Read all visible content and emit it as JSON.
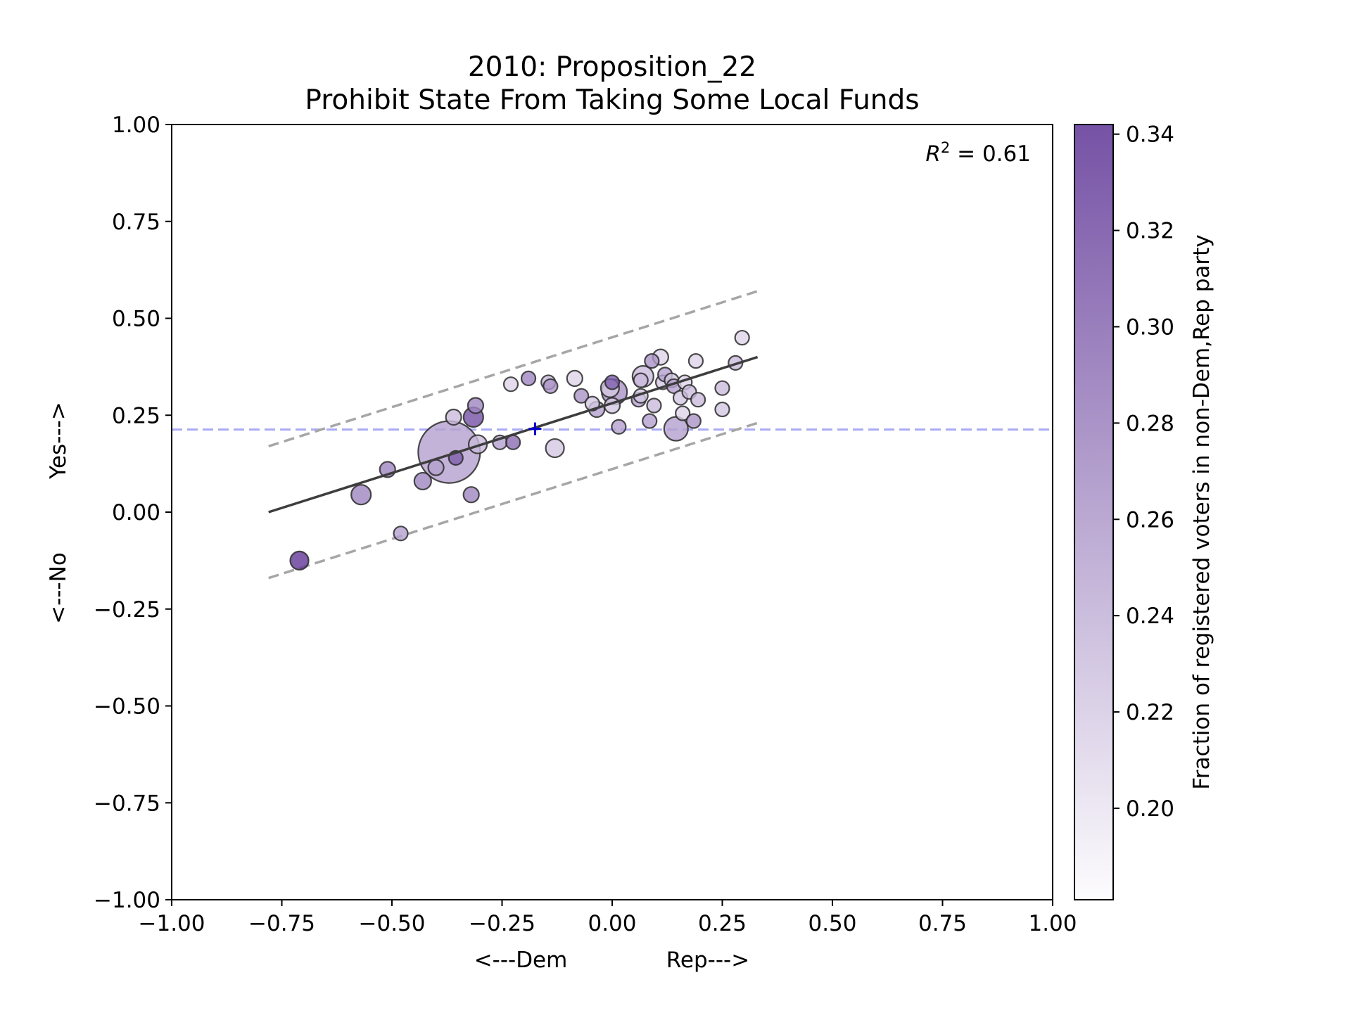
{
  "chart_data": {
    "type": "scatter",
    "title": "2010: Proposition_22",
    "subtitle": "Prohibit State From Taking Some Local Funds",
    "xlabel_left": "<---Dem",
    "xlabel_right": "Rep--->",
    "ylabel_bottom": "<---No",
    "ylabel_top": "Yes--->",
    "xlim": [
      -1.0,
      1.0
    ],
    "ylim": [
      -1.0,
      1.0
    ],
    "x_ticks": [
      "−1.00",
      "−0.75",
      "−0.50",
      "−0.25",
      "0.00",
      "0.25",
      "0.50",
      "0.75",
      "1.00"
    ],
    "y_ticks": [
      "−1.00",
      "−0.75",
      "−0.50",
      "−0.25",
      "0.00",
      "0.25",
      "0.50",
      "0.75",
      "1.00"
    ],
    "r2_label": "R",
    "r2_exp": "2",
    "r2_value": " = 0.61",
    "reference_y": 0.213,
    "mean_point": {
      "x": -0.175,
      "y": 0.215
    },
    "fit_line": {
      "x": [
        -0.78,
        0.33
      ],
      "y": [
        0.0,
        0.4
      ]
    },
    "band_upper": {
      "x": [
        -0.78,
        0.33
      ],
      "y": [
        0.17,
        0.57
      ]
    },
    "band_lower": {
      "x": [
        -0.78,
        0.33
      ],
      "y": [
        -0.17,
        0.23
      ]
    },
    "colorbar": {
      "label": "Fraction of registered voters in non-Dem,Rep party",
      "range": [
        0.181,
        0.342
      ],
      "ticks": [
        "0.20",
        "0.22",
        "0.24",
        "0.26",
        "0.28",
        "0.30",
        "0.32",
        "0.34"
      ],
      "tick_values": [
        0.2,
        0.22,
        0.24,
        0.26,
        0.28,
        0.3,
        0.32,
        0.34
      ],
      "color_low": "#fcfbfd",
      "color_high": "#54278f"
    },
    "points": [
      {
        "x": -0.71,
        "y": -0.125,
        "c": 0.33,
        "s": 13
      },
      {
        "x": -0.57,
        "y": 0.045,
        "c": 0.27,
        "s": 14
      },
      {
        "x": -0.51,
        "y": 0.11,
        "c": 0.27,
        "s": 11
      },
      {
        "x": -0.48,
        "y": -0.055,
        "c": 0.25,
        "s": 10
      },
      {
        "x": -0.43,
        "y": 0.08,
        "c": 0.27,
        "s": 12
      },
      {
        "x": -0.4,
        "y": 0.115,
        "c": 0.25,
        "s": 11
      },
      {
        "x": -0.37,
        "y": 0.155,
        "c": 0.25,
        "s": 44
      },
      {
        "x": -0.355,
        "y": 0.14,
        "c": 0.3,
        "s": 10
      },
      {
        "x": -0.36,
        "y": 0.245,
        "c": 0.23,
        "s": 11
      },
      {
        "x": -0.32,
        "y": 0.045,
        "c": 0.27,
        "s": 11
      },
      {
        "x": -0.315,
        "y": 0.245,
        "c": 0.31,
        "s": 14
      },
      {
        "x": -0.31,
        "y": 0.275,
        "c": 0.27,
        "s": 11
      },
      {
        "x": -0.305,
        "y": 0.175,
        "c": 0.23,
        "s": 13
      },
      {
        "x": -0.255,
        "y": 0.18,
        "c": 0.25,
        "s": 10
      },
      {
        "x": -0.23,
        "y": 0.33,
        "c": 0.21,
        "s": 10
      },
      {
        "x": -0.225,
        "y": 0.18,
        "c": 0.29,
        "s": 10
      },
      {
        "x": -0.19,
        "y": 0.345,
        "c": 0.27,
        "s": 10
      },
      {
        "x": -0.145,
        "y": 0.335,
        "c": 0.23,
        "s": 10
      },
      {
        "x": -0.14,
        "y": 0.325,
        "c": 0.26,
        "s": 10
      },
      {
        "x": -0.13,
        "y": 0.165,
        "c": 0.22,
        "s": 13
      },
      {
        "x": -0.085,
        "y": 0.345,
        "c": 0.21,
        "s": 11
      },
      {
        "x": -0.07,
        "y": 0.3,
        "c": 0.26,
        "s": 10
      },
      {
        "x": -0.045,
        "y": 0.28,
        "c": 0.22,
        "s": 10
      },
      {
        "x": -0.035,
        "y": 0.265,
        "c": 0.25,
        "s": 11
      },
      {
        "x": -0.005,
        "y": 0.32,
        "c": 0.22,
        "s": 13
      },
      {
        "x": 0.0,
        "y": 0.275,
        "c": 0.22,
        "s": 11
      },
      {
        "x": 0.0,
        "y": 0.335,
        "c": 0.3,
        "s": 10
      },
      {
        "x": 0.005,
        "y": 0.31,
        "c": 0.26,
        "s": 18
      },
      {
        "x": 0.015,
        "y": 0.22,
        "c": 0.25,
        "s": 10
      },
      {
        "x": 0.06,
        "y": 0.29,
        "c": 0.25,
        "s": 10
      },
      {
        "x": 0.065,
        "y": 0.3,
        "c": 0.22,
        "s": 10
      },
      {
        "x": 0.065,
        "y": 0.34,
        "c": 0.23,
        "s": 10
      },
      {
        "x": 0.07,
        "y": 0.35,
        "c": 0.23,
        "s": 15
      },
      {
        "x": 0.085,
        "y": 0.235,
        "c": 0.25,
        "s": 10
      },
      {
        "x": 0.09,
        "y": 0.39,
        "c": 0.26,
        "s": 10
      },
      {
        "x": 0.095,
        "y": 0.275,
        "c": 0.23,
        "s": 10
      },
      {
        "x": 0.11,
        "y": 0.4,
        "c": 0.21,
        "s": 11
      },
      {
        "x": 0.115,
        "y": 0.335,
        "c": 0.22,
        "s": 10
      },
      {
        "x": 0.12,
        "y": 0.355,
        "c": 0.25,
        "s": 10
      },
      {
        "x": 0.135,
        "y": 0.34,
        "c": 0.22,
        "s": 10
      },
      {
        "x": 0.14,
        "y": 0.325,
        "c": 0.25,
        "s": 10
      },
      {
        "x": 0.145,
        "y": 0.215,
        "c": 0.25,
        "s": 17
      },
      {
        "x": 0.155,
        "y": 0.295,
        "c": 0.22,
        "s": 10
      },
      {
        "x": 0.16,
        "y": 0.255,
        "c": 0.21,
        "s": 10
      },
      {
        "x": 0.165,
        "y": 0.335,
        "c": 0.21,
        "s": 10
      },
      {
        "x": 0.175,
        "y": 0.31,
        "c": 0.23,
        "s": 10
      },
      {
        "x": 0.185,
        "y": 0.235,
        "c": 0.26,
        "s": 10
      },
      {
        "x": 0.19,
        "y": 0.39,
        "c": 0.21,
        "s": 10
      },
      {
        "x": 0.195,
        "y": 0.29,
        "c": 0.23,
        "s": 10
      },
      {
        "x": 0.25,
        "y": 0.32,
        "c": 0.23,
        "s": 10
      },
      {
        "x": 0.25,
        "y": 0.265,
        "c": 0.22,
        "s": 10
      },
      {
        "x": 0.28,
        "y": 0.385,
        "c": 0.23,
        "s": 10
      },
      {
        "x": 0.295,
        "y": 0.45,
        "c": 0.21,
        "s": 10
      }
    ]
  }
}
